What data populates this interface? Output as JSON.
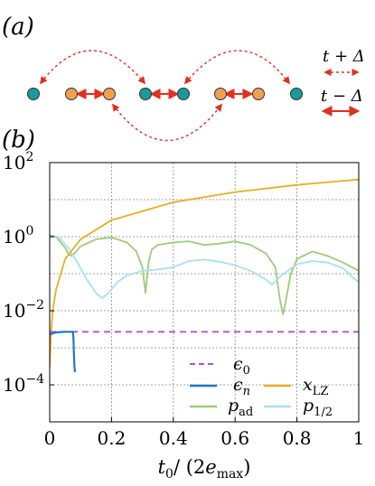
{
  "panel_a": {
    "label": "(a)",
    "legend_hop_t_plus": "t + Δ",
    "legend_hop_t_minus": "t − Δ",
    "colors": {
      "site_teal": "#1a9a9a",
      "site_orange": "#f0a050",
      "arrow_red": "#e03020",
      "site_stroke": "#333333"
    }
  },
  "panel_b_label": "(b)",
  "chart_data": {
    "type": "line",
    "xlabel": "t0/(2emax)",
    "ylabel": "",
    "xlim": [
      0,
      1
    ],
    "ylim": [
      1e-05,
      100
    ],
    "yscale": "log",
    "grid": true,
    "legend_position": "bottom-right",
    "x_ticks": [
      "0",
      "0.2",
      "0.4",
      "0.6",
      "0.8",
      "1"
    ],
    "x_tick_values": [
      0,
      0.2,
      0.4,
      0.6,
      0.8,
      1
    ],
    "y_ticks": [
      "10^2",
      "10^0",
      "10^-2",
      "10^-4"
    ],
    "y_tick_exponents": [
      2,
      0,
      -2,
      -4
    ],
    "series": [
      {
        "name": "ε0",
        "color": "#b44fd8",
        "style": "dashed",
        "x": [
          0.0,
          1.0
        ],
        "y": [
          0.0027,
          0.0027
        ]
      },
      {
        "name": "εn",
        "color": "#1f78c4",
        "style": "solid",
        "x": [
          0.0,
          0.02,
          0.05,
          0.075,
          0.077,
          0.078,
          0.08,
          0.082
        ],
        "y": [
          0.0023,
          0.0026,
          0.0027,
          0.0027,
          0.0018,
          0.0008,
          0.0003,
          0.00022
        ]
      },
      {
        "name": "xLZ",
        "color": "#e6b020",
        "style": "solid",
        "x": [
          0.0,
          0.005,
          0.01,
          0.02,
          0.05,
          0.1,
          0.2,
          0.4,
          0.6,
          0.8,
          1.0
        ],
        "y": [
          0.0003,
          0.003,
          0.01,
          0.035,
          0.25,
          0.85,
          2.8,
          8.5,
          16,
          25,
          35
        ]
      },
      {
        "name": "pad",
        "color": "#9ccc78",
        "style": "solid",
        "x": [
          0.0,
          0.02,
          0.05,
          0.06,
          0.07,
          0.08,
          0.1,
          0.15,
          0.2,
          0.25,
          0.28,
          0.3,
          0.31,
          0.32,
          0.33,
          0.35,
          0.4,
          0.45,
          0.5,
          0.55,
          0.6,
          0.65,
          0.7,
          0.73,
          0.745,
          0.755,
          0.765,
          0.78,
          0.8,
          0.85,
          0.9,
          0.95,
          1.0
        ],
        "y": [
          1.1,
          1.0,
          0.5,
          0.35,
          0.3,
          0.35,
          0.55,
          0.85,
          0.95,
          0.7,
          0.4,
          0.15,
          0.03,
          0.2,
          0.45,
          0.6,
          0.7,
          0.75,
          0.6,
          0.65,
          0.75,
          0.6,
          0.35,
          0.15,
          0.02,
          0.008,
          0.02,
          0.1,
          0.25,
          0.4,
          0.3,
          0.2,
          0.12
        ]
      },
      {
        "name": "p1/2",
        "color": "#a8e0f0",
        "style": "solid",
        "x": [
          0.0,
          0.03,
          0.06,
          0.09,
          0.12,
          0.15,
          0.17,
          0.19,
          0.22,
          0.25,
          0.3,
          0.35,
          0.4,
          0.45,
          0.5,
          0.55,
          0.6,
          0.65,
          0.7,
          0.72,
          0.75,
          0.8,
          0.85,
          0.9,
          0.95,
          0.98,
          1.0
        ],
        "y": [
          1.0,
          0.95,
          0.5,
          0.2,
          0.07,
          0.03,
          0.022,
          0.03,
          0.06,
          0.09,
          0.12,
          0.13,
          0.15,
          0.22,
          0.24,
          0.21,
          0.17,
          0.12,
          0.07,
          0.05,
          0.09,
          0.18,
          0.22,
          0.2,
          0.14,
          0.08,
          0.06
        ]
      }
    ]
  }
}
